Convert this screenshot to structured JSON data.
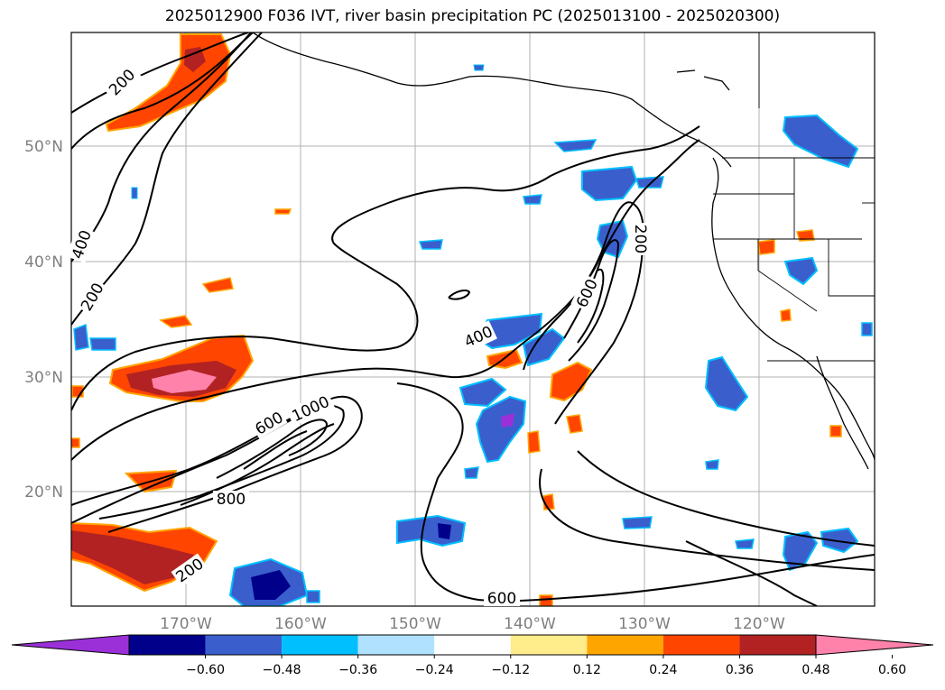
{
  "title": "2025012900 F036 IVT, river basin precipitation PC (2025013100 - 2025020300)",
  "latitude_labels": [
    "50°N",
    "40°N",
    "30°N",
    "20°N"
  ],
  "longitude_labels": [
    "170°W",
    "160°W",
    "150°W",
    "140°W",
    "130°W",
    "120°W"
  ],
  "contour_labels": {
    "c200a": "200",
    "c400a": "400",
    "c200b": "200",
    "c400b": "400",
    "c600a": "600",
    "c200c": "200",
    "c600b": "600",
    "c1000": "1000",
    "c800": "800",
    "c200d": "200",
    "c600c": "600"
  },
  "colorbar": {
    "tick_labels": [
      "−0.60",
      "−0.48",
      "−0.36",
      "−0.24",
      "−0.12",
      "0.12",
      "0.24",
      "0.36",
      "0.48",
      "0.60"
    ],
    "colors": [
      "#9b30d9",
      "#00008b",
      "#3a5fcd",
      "#00bfff",
      "#b0e2ff",
      "#ffffff",
      "#ffec8b",
      "#ffa500",
      "#ff4500",
      "#b22222",
      "#ff82ab"
    ]
  }
}
